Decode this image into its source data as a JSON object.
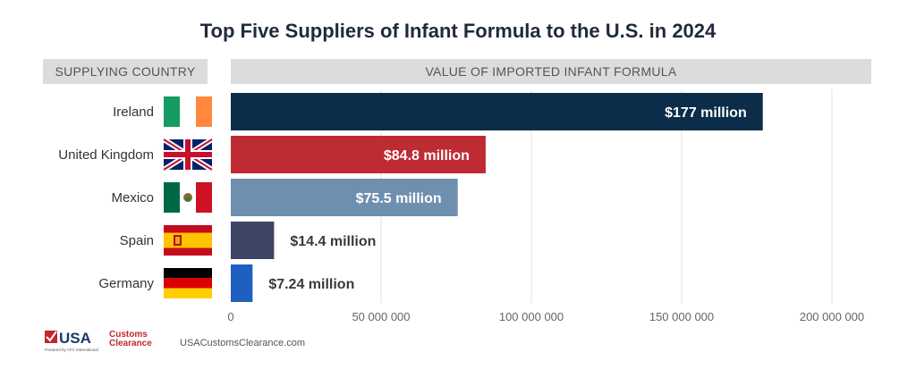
{
  "title": "Top Five Suppliers of Infant Formula to the U.S. in 2024",
  "headers": {
    "left": "SUPPLYING COUNTRY",
    "right": "VALUE OF IMPORTED INFANT FORMULA"
  },
  "footer": {
    "logo_main": "USA",
    "logo_word1": "Customs",
    "logo_word2": "Clearance",
    "logo_tagline": "Powered by AFC International",
    "website": "USACustomsClearance.com"
  },
  "colors": {
    "title": "#1f2a3c",
    "brand_red": "#c0272d",
    "brand_navy": "#1b3a6b"
  },
  "chart_data": {
    "type": "bar",
    "orientation": "horizontal",
    "title": "Top Five Suppliers of Infant Formula to the U.S. in 2024",
    "categories": [
      "Ireland",
      "United Kingdom",
      "Mexico",
      "Spain",
      "Germany"
    ],
    "values": [
      177000000,
      84800000,
      75500000,
      14400000,
      7240000
    ],
    "data_labels": [
      "$177 million",
      "$84.8 million",
      "$75.5 million",
      "$14.4 million",
      "$7.24 million"
    ],
    "bar_colors": [
      "#0b2d4a",
      "#bf2b33",
      "#6e8fae",
      "#3e4466",
      "#1f5fbf"
    ],
    "flags": [
      "ireland-flag",
      "uk-flag",
      "mexico-flag",
      "spain-flag",
      "germany-flag"
    ],
    "xlim": [
      0,
      200000000
    ],
    "x_ticks": [
      0,
      50000000,
      100000000,
      150000000,
      200000000
    ],
    "x_tick_labels": [
      "0",
      "50 000 000",
      "100 000 000",
      "150 000 000",
      "200 000 000"
    ],
    "grid": true
  }
}
